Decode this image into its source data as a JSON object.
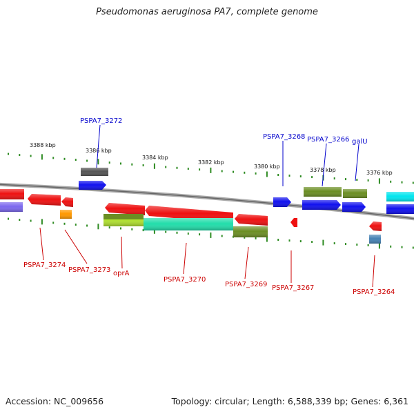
{
  "title": "Pseudomonas aeruginosa PA7, complete genome",
  "footer": {
    "accession": "Accession: NC_009656",
    "summary": "Topology: circular; Length: 6,588,339 bp; Genes: 6,361"
  },
  "scale_labels": [
    "3388 kbp",
    "3386 kbp",
    "3384 kbp",
    "3382 kbp",
    "3380 kbp",
    "3378 kbp",
    "3376 kbp"
  ],
  "colors": {
    "backbone": "#8a8a8a",
    "tick": "#2e8b22",
    "forward_label": "#0000cc",
    "reverse_label": "#cc0000",
    "red": "#ee1111",
    "blue": "#1111ee",
    "olive": "#6b8e23",
    "teal": "#22ddaa",
    "lime": "#b0e030",
    "orange": "#ff9900",
    "grey": "#555555",
    "lavender": "#7b68ee",
    "cyan": "#00e5ee",
    "steelblue": "#4682b4"
  },
  "forward_gene_labels": [
    "PSPA7_3272",
    "PSPA7_3268",
    "PSPA7_3266",
    "galU"
  ],
  "reverse_gene_labels": [
    "PSPA7_3274",
    "PSPA7_3273",
    "oprA",
    "PSPA7_3270",
    "PSPA7_3269",
    "PSPA7_3267",
    "PSPA7_3264"
  ]
}
